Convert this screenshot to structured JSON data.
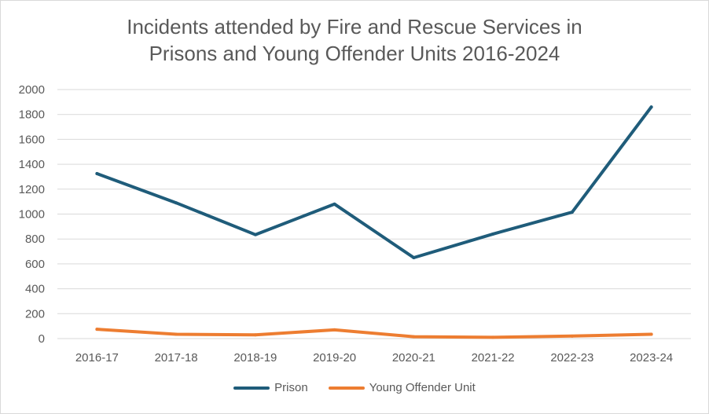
{
  "chart_data": {
    "type": "line",
    "title_lines": [
      "Incidents attended by Fire and Rescue Services in",
      "Prisons and Young Offender Units 2016-2024"
    ],
    "categories": [
      "2016-17",
      "2017-18",
      "2018-19",
      "2019-20",
      "2020-21",
      "2021-22",
      "2022-23",
      "2023-24"
    ],
    "series": [
      {
        "name": "Prison",
        "color": "#1f5c7a",
        "values": [
          1325,
          1090,
          835,
          1080,
          650,
          840,
          1015,
          1860
        ]
      },
      {
        "name": "Young Offender Unit",
        "color": "#ed7d31",
        "values": [
          75,
          35,
          30,
          70,
          15,
          10,
          20,
          35
        ]
      }
    ],
    "yticks": [
      "0",
      "200",
      "400",
      "600",
      "800",
      "1000",
      "1200",
      "1400",
      "1600",
      "1800",
      "2000"
    ],
    "ylim": [
      0,
      2000
    ],
    "grid": true,
    "legend_position": "bottom"
  }
}
